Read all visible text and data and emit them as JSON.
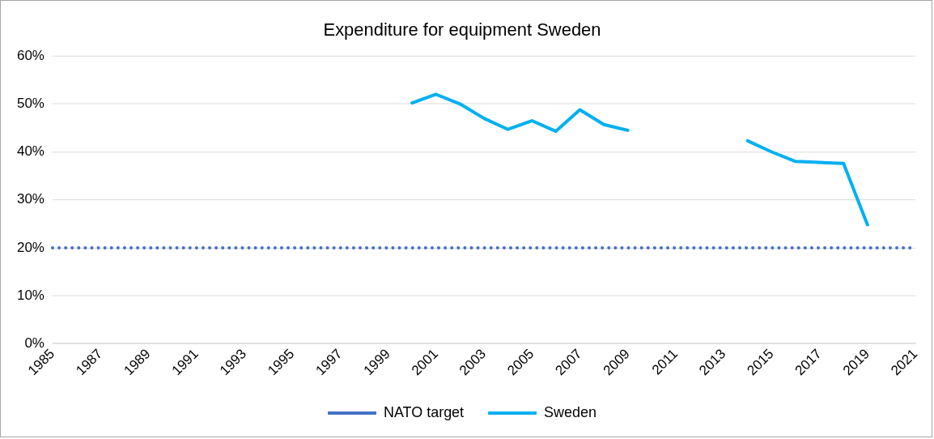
{
  "chart_data": {
    "type": "line",
    "title": "Expenditure for equipment Sweden",
    "categories": [
      "1985",
      null,
      "1987",
      null,
      "1989",
      null,
      "1991",
      null,
      "1993",
      null,
      "1995",
      null,
      "1997",
      null,
      "1999",
      null,
      "2001",
      null,
      "2003",
      null,
      "2005",
      null,
      "2007",
      null,
      "2009",
      null,
      "2011",
      null,
      "2013",
      null,
      "2015",
      null,
      "2017",
      null,
      "2019",
      null,
      "2021"
    ],
    "series": [
      {
        "name": "NATO target",
        "color": "#4472c4",
        "line_style": "dotted",
        "values": [
          20,
          20,
          20,
          20,
          20,
          20,
          20,
          20,
          20,
          20,
          20,
          20,
          20,
          20,
          20,
          20,
          20,
          20,
          20,
          20,
          20,
          20,
          20,
          20,
          20,
          20,
          20,
          20,
          20,
          20,
          20,
          20,
          20,
          20,
          20,
          20,
          20
        ]
      },
      {
        "name": "Sweden",
        "color": "#00b0f0",
        "line_style": "solid",
        "values": [
          null,
          null,
          null,
          null,
          null,
          null,
          null,
          null,
          null,
          null,
          null,
          null,
          null,
          null,
          null,
          50.2,
          52,
          50,
          47,
          44.7,
          46.5,
          44.3,
          48.8,
          45.7,
          44.5,
          null,
          null,
          null,
          null,
          42.3,
          40,
          38,
          37.8,
          37.6,
          24.8,
          null,
          null
        ]
      }
    ],
    "ylim": [
      0,
      60
    ],
    "yticks": [
      {
        "value": 0,
        "label": "0%"
      },
      {
        "value": 10,
        "label": "10%"
      },
      {
        "value": 20,
        "label": "20%"
      },
      {
        "value": 30,
        "label": "30%"
      },
      {
        "value": 40,
        "label": "40%"
      },
      {
        "value": 50,
        "label": "50%"
      },
      {
        "value": 60,
        "label": "60%"
      }
    ],
    "grid": "y",
    "legend": "bottom",
    "marker": "none"
  }
}
